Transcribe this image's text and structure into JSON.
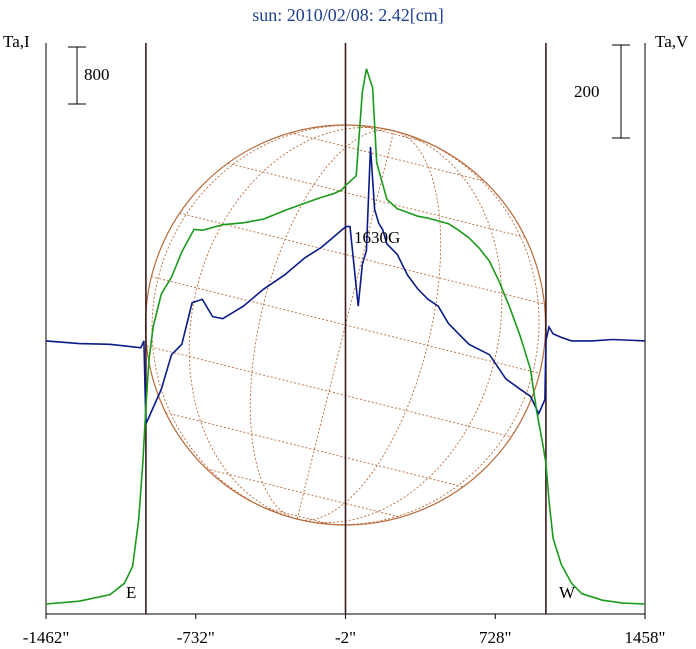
{
  "title": "sun: 2010/02/08: 2.42[cm]",
  "left_axis_label": "Ta,I",
  "right_axis_label": "Ta,V",
  "scale_left": {
    "label": "800"
  },
  "scale_right": {
    "label": "200"
  },
  "annotation": "1630G",
  "limb_labels": {
    "east": "E",
    "west": "W"
  },
  "colors": {
    "intensity": "#1a9a1a",
    "polarization": "#0a1a8a",
    "disk": "#b86a3a",
    "title": "#1f3f8f",
    "vertical_lines": "#3a1a1a"
  },
  "chart_data": {
    "type": "line",
    "title": "sun: 2010/02/08: 2.42[cm]",
    "x_unit": "arcsec",
    "xlim": [
      -1462,
      1458
    ],
    "x_ticks": [
      "-1462\"",
      "-732\"",
      "-2\"",
      "728\"",
      "1458\""
    ],
    "x_tick_values": [
      -1462,
      -732,
      -2,
      728,
      1458
    ],
    "vertical_markers": [
      -975,
      -2,
      975
    ],
    "series": [
      {
        "name": "Ta,I",
        "axis": "left",
        "x": [
          -1462,
          -1300,
          -1150,
          -1080,
          -1040,
          -1010,
          -990,
          -975,
          -960,
          -940,
          -900,
          -850,
          -800,
          -740,
          -700,
          -650,
          -600,
          -500,
          -400,
          -300,
          -200,
          -120,
          -60,
          -20,
          0,
          50,
          80,
          100,
          130,
          150,
          200,
          250,
          300,
          350,
          400,
          450,
          500,
          550,
          600,
          650,
          700,
          750,
          800,
          850,
          900,
          930,
          960,
          975,
          990,
          1010,
          1050,
          1100,
          1150,
          1250,
          1350,
          1458
        ],
        "y": [
          0,
          30,
          100,
          220,
          400,
          900,
          1500,
          2100,
          2600,
          2950,
          3300,
          3480,
          3750,
          3990,
          3980,
          4010,
          4040,
          4060,
          4100,
          4190,
          4270,
          4330,
          4370,
          4410,
          4460,
          4560,
          5450,
          5700,
          5500,
          4700,
          4310,
          4210,
          4170,
          4130,
          4110,
          4080,
          4050,
          3980,
          3900,
          3790,
          3650,
          3420,
          3150,
          2850,
          2500,
          2050,
          1700,
          1500,
          1100,
          700,
          420,
          220,
          110,
          40,
          10,
          0
        ],
        "ylim": [
          0,
          5900
        ]
      },
      {
        "name": "Ta,V",
        "axis": "right",
        "x": [
          -1462,
          -1300,
          -1150,
          -1000,
          -985,
          -975,
          -960,
          -900,
          -850,
          -800,
          -750,
          -700,
          -650,
          -600,
          -500,
          -400,
          -300,
          -200,
          -120,
          -60,
          -20,
          0,
          20,
          60,
          80,
          100,
          120,
          140,
          160,
          180,
          200,
          250,
          300,
          350,
          400,
          450,
          500,
          550,
          600,
          700,
          780,
          850,
          900,
          940,
          970,
          975,
          990,
          1010,
          1050,
          1100,
          1200,
          1300,
          1458
        ],
        "y": [
          0,
          -4,
          -5,
          -10,
          0,
          -120,
          -110,
          -70,
          -20,
          -5,
          55,
          60,
          35,
          32,
          50,
          75,
          95,
          120,
          135,
          150,
          160,
          165,
          165,
          50,
          110,
          130,
          280,
          190,
          170,
          160,
          140,
          125,
          95,
          75,
          60,
          50,
          25,
          10,
          -5,
          -20,
          -55,
          -70,
          -80,
          -105,
          -85,
          0,
          20,
          10,
          5,
          0,
          0,
          2,
          0
        ],
        "ylim": [
          -380,
          420
        ]
      }
    ],
    "disk_center_x": -2,
    "disk_radius": 975
  }
}
